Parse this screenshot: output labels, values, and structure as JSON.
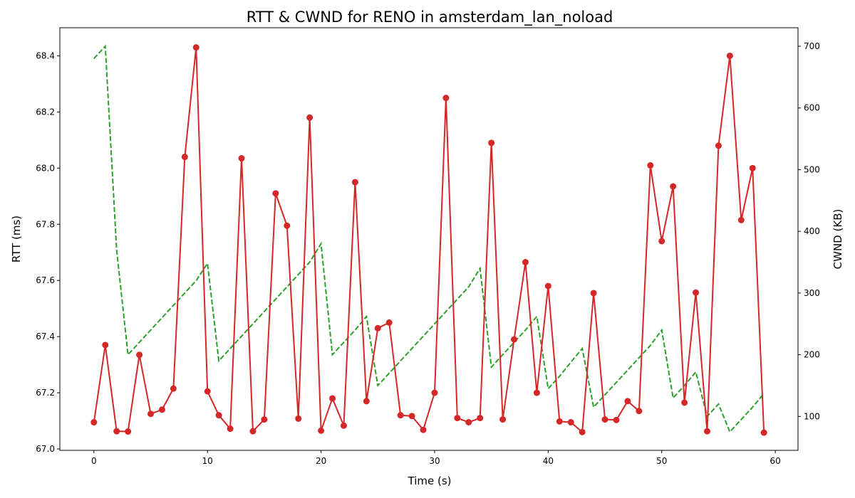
{
  "chart_data": {
    "type": "line",
    "title": "RTT & CWND for RENO in amsterdam_lan_noload",
    "xlabel": "Time (s)",
    "ylabel_left": "RTT (ms)",
    "ylabel_right": "CWND (KB)",
    "xlim": [
      -3.0,
      62.0
    ],
    "ylim_left": [
      66.995,
      68.5
    ],
    "ylim_right": [
      45,
      730
    ],
    "x_ticks": [
      0,
      10,
      20,
      30,
      40,
      50,
      60
    ],
    "y_left_ticks": [
      67.0,
      67.2,
      67.4,
      67.6,
      67.8,
      68.0,
      68.2,
      68.4
    ],
    "y_right_ticks": [
      100,
      200,
      300,
      400,
      500,
      600,
      700
    ],
    "grid": false,
    "legend": "none",
    "colors": {
      "rtt": "#d62728",
      "cwnd": "#2ca02c"
    },
    "series": [
      {
        "axis": "left",
        "style": "solid-with-markers",
        "x": [
          0,
          1,
          2,
          3,
          4,
          5,
          6,
          7,
          8,
          9,
          10,
          11,
          12,
          13,
          14,
          15,
          16,
          17,
          18,
          19,
          20,
          21,
          22,
          23,
          24,
          25,
          26,
          27,
          28,
          29,
          30,
          31,
          32,
          33,
          34,
          35,
          36,
          37,
          38,
          39,
          40,
          41,
          42,
          43,
          44,
          45,
          46,
          47,
          48,
          49,
          50,
          51,
          52,
          53,
          54,
          55,
          56,
          57,
          58,
          59
        ],
        "values": [
          67.095,
          67.37,
          67.063,
          67.062,
          67.335,
          67.125,
          67.14,
          67.215,
          68.04,
          68.43,
          67.205,
          67.12,
          67.072,
          68.035,
          67.063,
          67.105,
          67.91,
          67.795,
          67.108,
          68.18,
          67.065,
          67.18,
          67.083,
          67.95,
          67.17,
          67.43,
          67.45,
          67.12,
          67.117,
          67.068,
          67.2,
          68.25,
          67.11,
          67.095,
          67.11,
          68.09,
          67.105,
          67.39,
          67.665,
          67.2,
          67.58,
          67.098,
          67.095,
          67.06,
          67.555,
          67.105,
          67.103,
          67.17,
          67.135,
          68.01,
          67.74,
          67.935,
          67.165,
          67.557,
          67.063,
          68.08,
          68.4,
          67.815,
          68.0,
          67.058
        ]
      },
      {
        "axis": "right",
        "style": "dashed",
        "x": [
          0,
          1,
          2,
          3,
          4,
          5,
          6,
          7,
          8,
          9,
          10,
          11,
          12,
          13,
          14,
          15,
          16,
          17,
          18,
          19,
          20,
          21,
          22,
          23,
          24,
          25,
          26,
          27,
          28,
          29,
          30,
          31,
          32,
          33,
          34,
          35,
          36,
          37,
          38,
          39,
          40,
          41,
          42,
          43,
          44,
          45,
          46,
          47,
          48,
          49,
          50,
          51,
          52,
          53,
          54,
          55,
          56,
          57,
          58,
          59
        ],
        "values": [
          680,
          700,
          370,
          200,
          220,
          240,
          260,
          280,
          300,
          320,
          348,
          190,
          210,
          230,
          250,
          270,
          290,
          310,
          330,
          350,
          380,
          200,
          220,
          240,
          262,
          150,
          170,
          190,
          210,
          230,
          250,
          270,
          290,
          310,
          340,
          180,
          200,
          220,
          240,
          262,
          145,
          165,
          188,
          210,
          115,
          135,
          155,
          175,
          195,
          215,
          240,
          130,
          150,
          172,
          100,
          120,
          75,
          95,
          115,
          137
        ]
      }
    ]
  }
}
